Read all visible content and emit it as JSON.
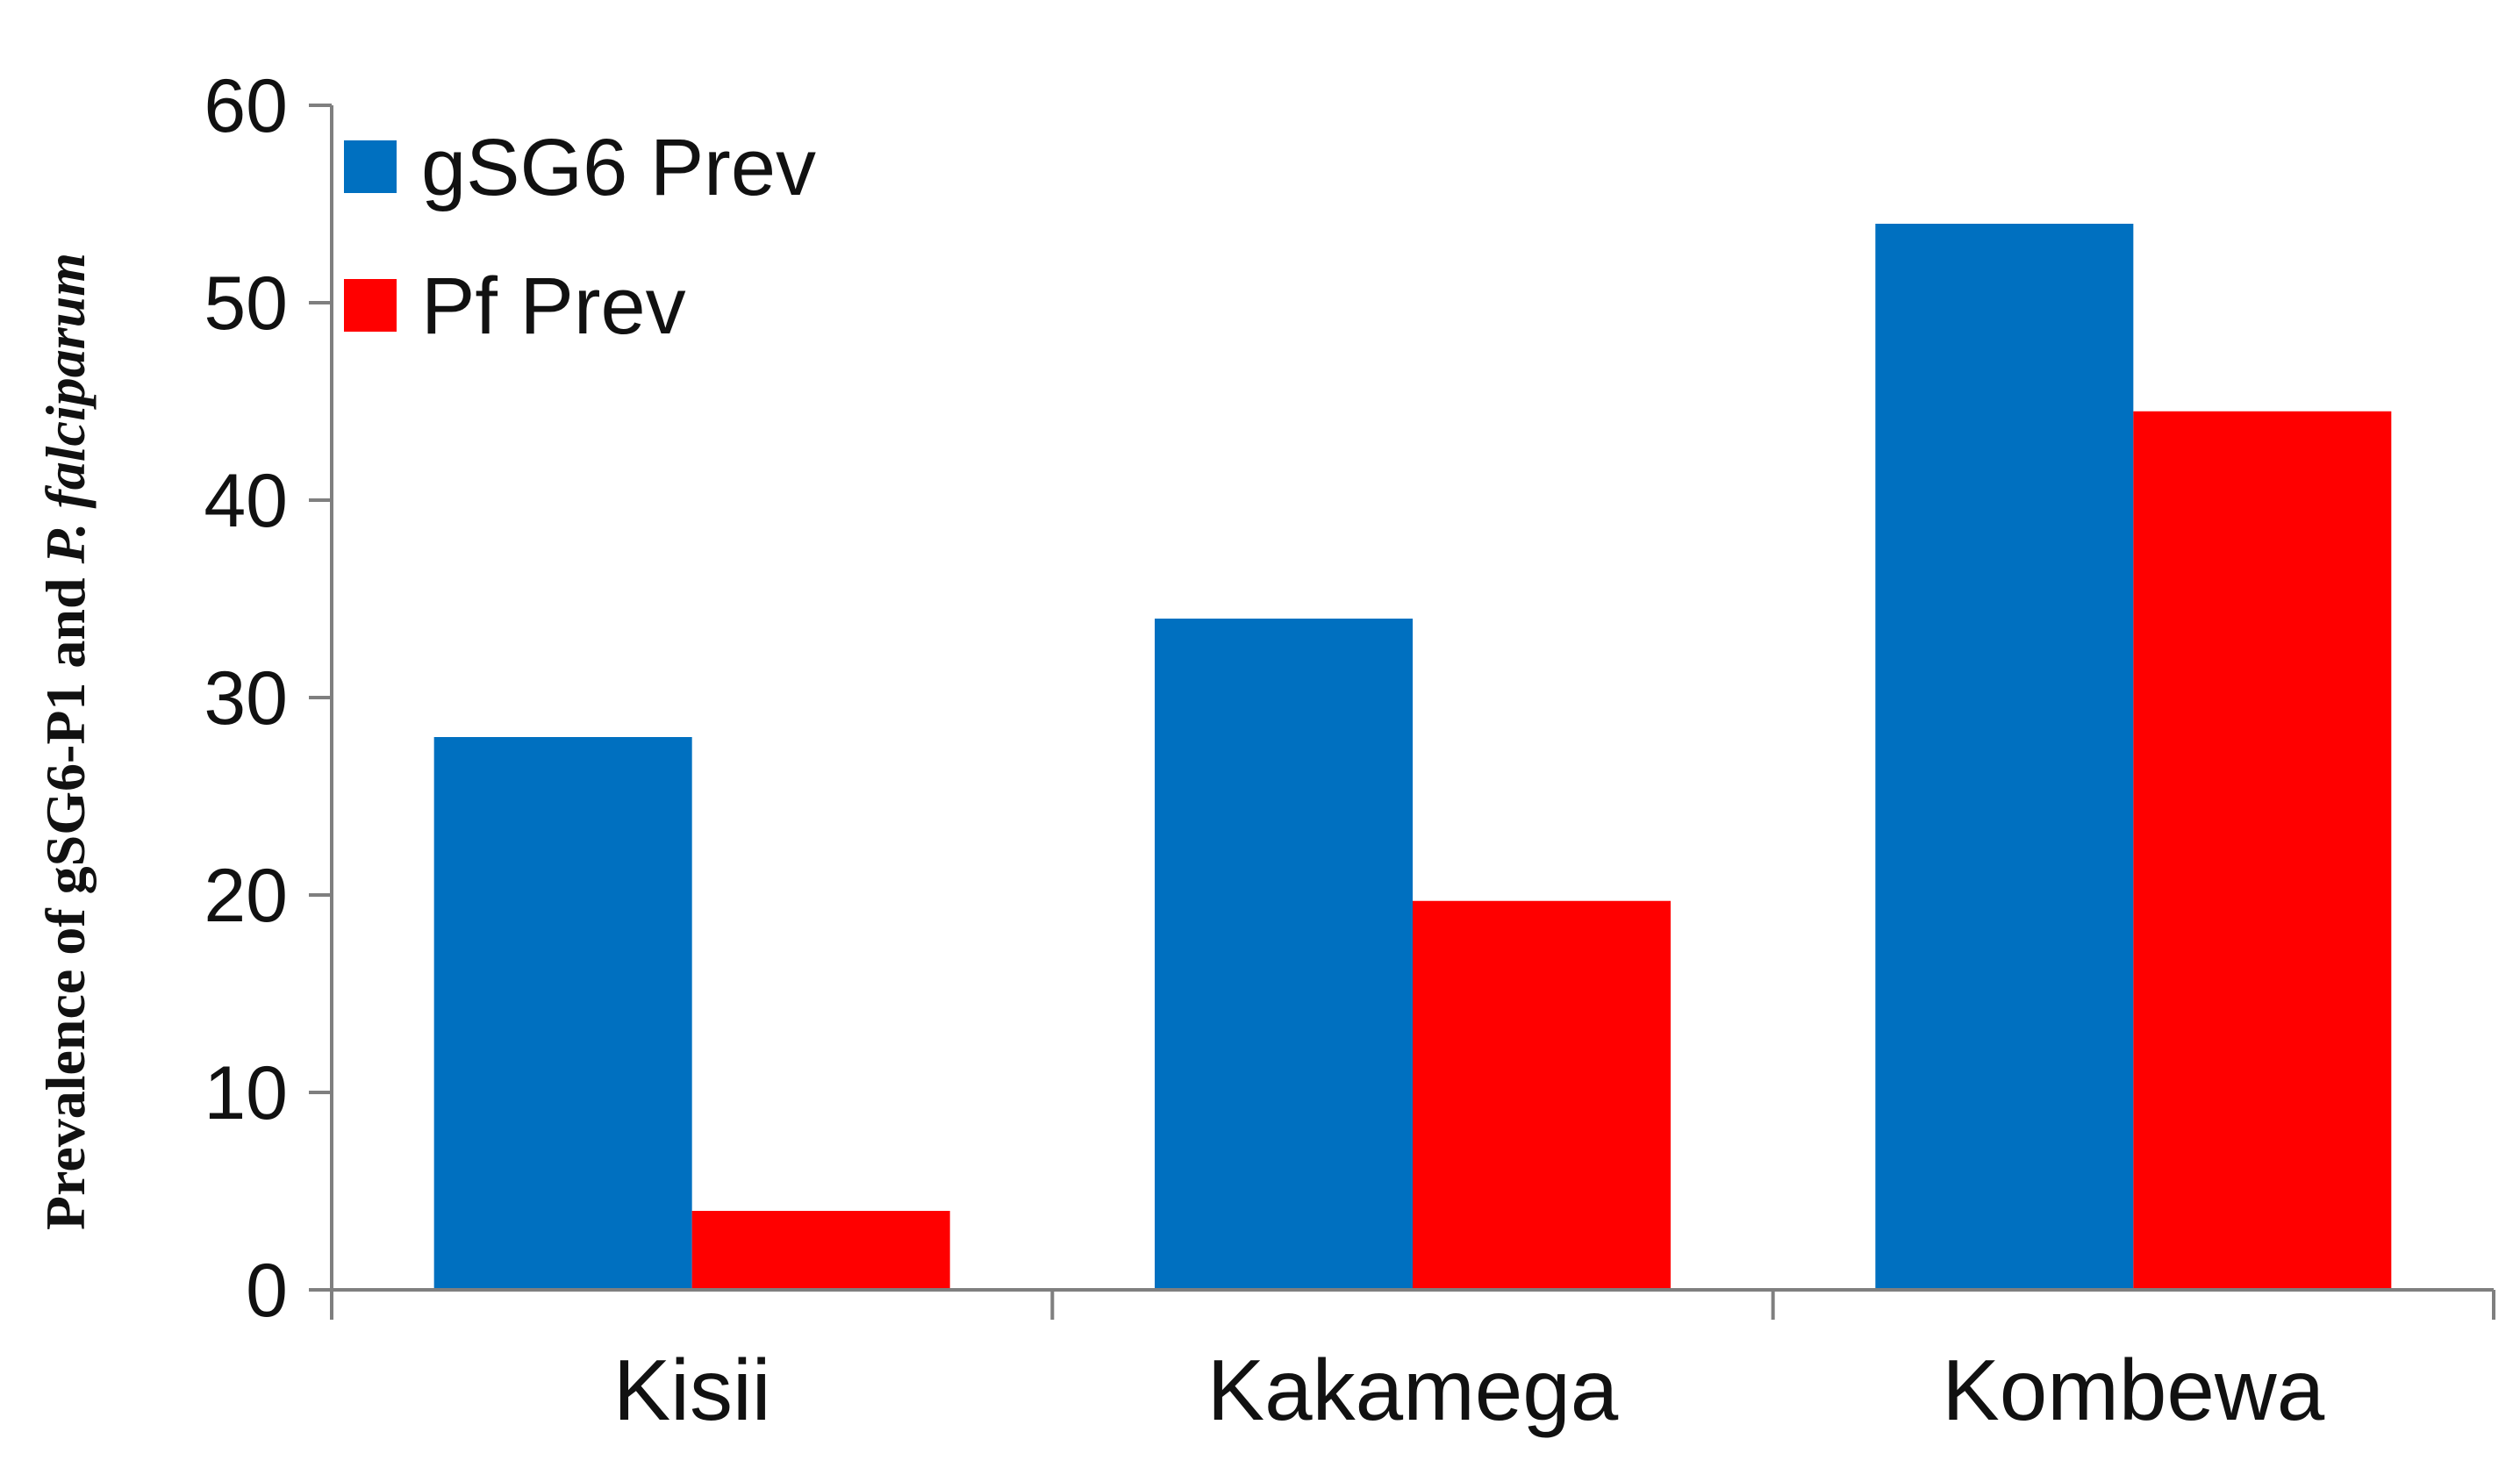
{
  "chart_data": {
    "type": "bar",
    "categories": [
      "Kisii",
      "Kakamega",
      "Kombewa"
    ],
    "series": [
      {
        "name": "gSG6 Prev",
        "values": [
          28,
          34,
          54
        ],
        "color": "#0070C0"
      },
      {
        "name": "Pf Prev",
        "values": [
          4,
          19.7,
          44.5
        ],
        "color": "#FF0000"
      }
    ],
    "ylabel": {
      "prefix": "Prevalence of  gSG6-P1 and ",
      "italic": "P. falciparum"
    },
    "ylim": [
      0,
      60
    ],
    "yticks": [
      0,
      10,
      20,
      30,
      40,
      50,
      60
    ],
    "grid": false,
    "legend_position": "top-left"
  }
}
